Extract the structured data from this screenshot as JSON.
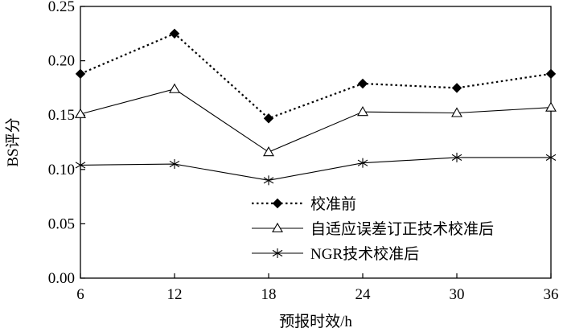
{
  "chart_data": {
    "type": "line",
    "title": "",
    "xlabel": "预报时效/h",
    "ylabel": "BS评分",
    "x": [
      6,
      12,
      18,
      24,
      30,
      36
    ],
    "xticks": [
      "6",
      "12",
      "18",
      "24",
      "30",
      "36"
    ],
    "ylim": [
      0,
      0.25
    ],
    "yticks": [
      "0.00",
      "0.05",
      "0.10",
      "0.15",
      "0.20",
      "0.25"
    ],
    "grid": false,
    "legend_position": "bottom-right",
    "series": [
      {
        "name": "校准前",
        "marker": "diamond-filled",
        "line": "dotted",
        "values": [
          0.188,
          0.225,
          0.147,
          0.179,
          0.175,
          0.188
        ]
      },
      {
        "name": "自适应误差订正技术校准后",
        "marker": "triangle-open",
        "line": "solid",
        "values": [
          0.151,
          0.174,
          0.116,
          0.153,
          0.152,
          0.157
        ]
      },
      {
        "name": "NGR技术校准后",
        "marker": "asterisk",
        "line": "solid",
        "values": [
          0.104,
          0.105,
          0.09,
          0.106,
          0.111,
          0.111
        ]
      }
    ]
  }
}
